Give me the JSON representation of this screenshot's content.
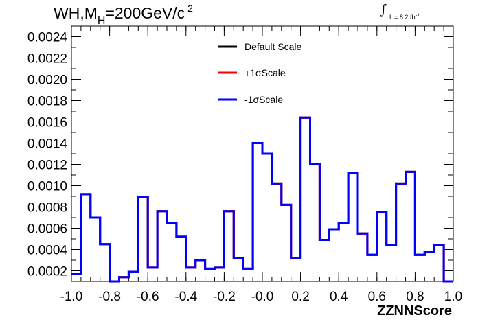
{
  "header": {
    "title_main": "WH,M",
    "title_sub": "H",
    "title_rest": "=200GeV/c",
    "title_sup": "2",
    "lumi_text": "L = 8.2 fb",
    "lumi_sup": "-1"
  },
  "chart_data": {
    "type": "line",
    "style": "step-histogram",
    "title": "WH,MH=200GeV/c 2",
    "xlabel": "ZZNNScore",
    "ylabel": "",
    "xlim": [
      -1.0,
      1.0
    ],
    "ylim": [
      0.0001,
      0.0025
    ],
    "grid": false,
    "legend_position": "top-center",
    "x_ticks": [
      "-1.0",
      "-0.8",
      "-0.6",
      "-0.4",
      "-0.2",
      "-0.0",
      "0.2",
      "0.4",
      "0.6",
      "0.8",
      "1.0"
    ],
    "y_ticks": [
      "0.0002",
      "0.0004",
      "0.0006",
      "0.0008",
      "0.0010",
      "0.0012",
      "0.0014",
      "0.0016",
      "0.0018",
      "0.0020",
      "0.0022",
      "0.0024"
    ],
    "bin_edges": [
      -1.0,
      -0.95,
      -0.9,
      -0.85,
      -0.8,
      -0.75,
      -0.7,
      -0.65,
      -0.6,
      -0.55,
      -0.5,
      -0.45,
      -0.4,
      -0.35,
      -0.3,
      -0.25,
      -0.2,
      -0.15,
      -0.1,
      -0.05,
      0.0,
      0.05,
      0.1,
      0.15,
      0.2,
      0.25,
      0.3,
      0.35,
      0.4,
      0.45,
      0.5,
      0.55,
      0.6,
      0.65,
      0.7,
      0.75,
      0.8,
      0.85,
      0.9,
      0.95,
      1.0
    ],
    "series": [
      {
        "name": "Default Scale",
        "color": "#000000",
        "values": [
          0.00017,
          0.00092,
          0.0007,
          0.00045,
          0.0001,
          0.00014,
          0.00019,
          0.00089,
          0.00023,
          0.00076,
          0.00065,
          0.00052,
          0.00023,
          0.0003,
          0.00022,
          0.00023,
          0.00076,
          0.00032,
          0.00022,
          0.0014,
          0.0013,
          0.00102,
          0.00082,
          0.00032,
          0.00164,
          0.0012,
          0.00049,
          0.00059,
          0.00065,
          0.00112,
          0.00055,
          0.00035,
          0.00075,
          0.00044,
          0.00102,
          0.00113,
          0.00035,
          0.00038,
          0.00044,
          0.0001
        ]
      },
      {
        "name": "+1σScale",
        "color": "#ff0000",
        "values": [
          0.00017,
          0.00092,
          0.0007,
          0.00045,
          0.0001,
          0.00014,
          0.00019,
          0.00089,
          0.00023,
          0.00076,
          0.00065,
          0.00052,
          0.00023,
          0.0003,
          0.00022,
          0.00023,
          0.00076,
          0.00032,
          0.00022,
          0.0014,
          0.0013,
          0.00102,
          0.00082,
          0.00032,
          0.00164,
          0.0012,
          0.00049,
          0.00059,
          0.00065,
          0.00112,
          0.00055,
          0.00035,
          0.00075,
          0.00044,
          0.00102,
          0.00113,
          0.00035,
          0.00038,
          0.00044,
          0.0001
        ]
      },
      {
        "name": "-1σScale",
        "color": "#0000ff",
        "values": [
          0.00017,
          0.00092,
          0.0007,
          0.00045,
          0.0001,
          0.00014,
          0.00019,
          0.00089,
          0.00023,
          0.00076,
          0.00065,
          0.00052,
          0.00023,
          0.0003,
          0.00022,
          0.00023,
          0.00076,
          0.00032,
          0.00022,
          0.0014,
          0.0013,
          0.00102,
          0.00082,
          0.00032,
          0.00164,
          0.0012,
          0.00049,
          0.00059,
          0.00065,
          0.00112,
          0.00055,
          0.00035,
          0.00075,
          0.00044,
          0.00102,
          0.00113,
          0.00035,
          0.00038,
          0.00044,
          0.0001
        ]
      }
    ]
  }
}
